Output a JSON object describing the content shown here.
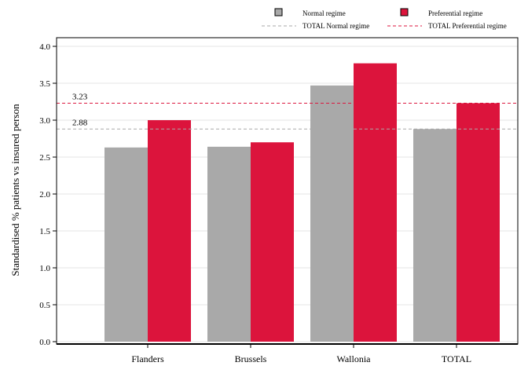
{
  "chart_data": {
    "type": "bar",
    "categories": [
      "Flanders",
      "Brussels",
      "Wallonia",
      "TOTAL"
    ],
    "series": [
      {
        "name": "Normal regime",
        "values": [
          2.63,
          2.64,
          3.47,
          2.88
        ],
        "color": "#A9A9A9"
      },
      {
        "name": "Preferential regime",
        "values": [
          3.0,
          2.7,
          3.77,
          3.23
        ],
        "color": "#DC143C"
      }
    ],
    "reference_lines": [
      {
        "name": "TOTAL Normal regime",
        "value": 2.88,
        "label": "2.88",
        "color": "#A9A9A9",
        "style": "dashed"
      },
      {
        "name": "TOTAL Preferential regime",
        "value": 3.23,
        "label": "3.23",
        "color": "#DC143C",
        "style": "dashed"
      }
    ],
    "ylabel": "Standardised % patients vs insured person",
    "xlabel": "",
    "ylim": [
      0,
      4.0
    ],
    "yticks": [
      "0.0",
      "0.5",
      "1.0",
      "1.5",
      "2.0",
      "2.5",
      "3.0",
      "3.5",
      "4.0"
    ],
    "grid": true,
    "legend_position": "top"
  }
}
